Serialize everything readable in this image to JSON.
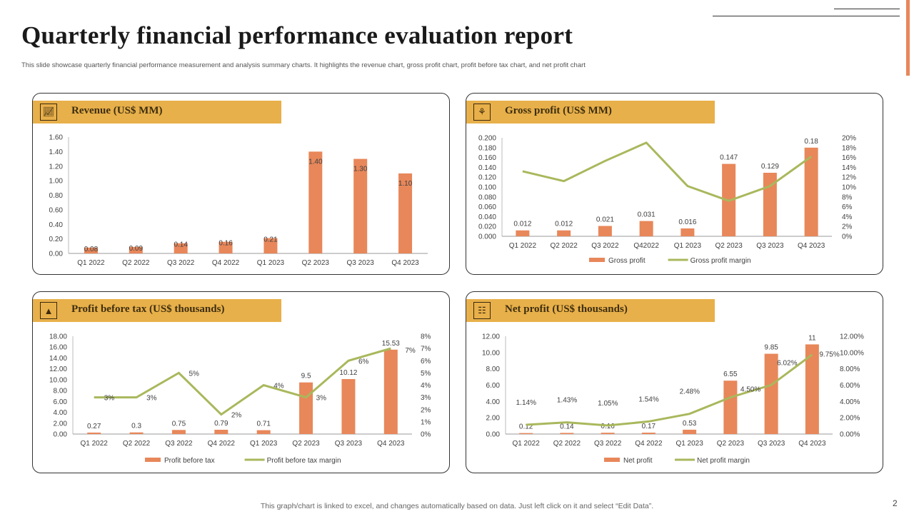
{
  "title": "Quarterly financial performance evaluation report",
  "subtitle": "This slide showcase quarterly financial performance measurement and analysis summary charts. It highlights the revenue chart, gross profit chart, profit before tax chart, and net profit chart",
  "footer": "This graph/chart is linked to excel,  and changes automatically based on data. Just left click on it and select “Edit Data”.",
  "page_number": "2",
  "colors": {
    "bar": "#e8875a",
    "line": "#a9b85c",
    "header": "#e8b04a",
    "accent": "#e8875a"
  },
  "chart_data": [
    {
      "type": "bar",
      "title": "Revenue (US$ MM)",
      "icon": "chart-growth-icon",
      "categories": [
        "Q1 2022",
        "Q2 2022",
        "Q3 2022",
        "Q4 2022",
        "Q1 2023",
        "Q2 2023",
        "Q3 2023",
        "Q4 2023"
      ],
      "values": [
        0.08,
        0.09,
        0.14,
        0.16,
        0.21,
        1.4,
        1.3,
        1.1
      ],
      "labels": [
        "0.08",
        "0.09",
        "0.14",
        "0.16",
        "0.21",
        "1.40",
        "1.30",
        "1.10"
      ],
      "ylim": [
        0,
        1.6
      ],
      "yticks": [
        "0.00",
        "0.20",
        "0.40",
        "0.60",
        "0.80",
        "1.00",
        "1.20",
        "1.40",
        "1.60"
      ],
      "grid": false
    },
    {
      "type": "bar+line",
      "title": "Gross profit  (US$ MM)",
      "icon": "money-bag-icon",
      "categories": [
        "Q1 2022",
        "Q2 2022",
        "Q3 2022",
        "Q42022",
        "Q1 2023",
        "Q2 2023",
        "Q3 2023",
        "Q4 2023"
      ],
      "series": [
        {
          "name": "Gross profit",
          "type": "bar",
          "axis": "left",
          "values": [
            0.012,
            0.012,
            0.021,
            0.031,
            0.016,
            0.147,
            0.129,
            0.18
          ],
          "labels": [
            "0.012",
            "0.012",
            "0.021",
            "0.031",
            "0.016",
            "0.147",
            "0.129",
            "0.18"
          ]
        },
        {
          "name": "Gross profit margin",
          "type": "line",
          "axis": "right",
          "values": [
            13.2,
            11.2,
            15.3,
            19.0,
            10.2,
            7.2,
            10.2,
            16.2
          ],
          "labels": []
        }
      ],
      "ylim": [
        0,
        0.2
      ],
      "yticks": [
        "0.000",
        "0.020",
        "0.040",
        "0.060",
        "0.080",
        "0.100",
        "0.120",
        "0.140",
        "0.160",
        "0.180",
        "0.200"
      ],
      "y2lim": [
        0,
        20
      ],
      "y2ticks": [
        "0%",
        "2%",
        "4%",
        "6%",
        "8%",
        "10%",
        "12%",
        "14%",
        "16%",
        "18%",
        "20%"
      ],
      "legend": "bottom",
      "grid": false
    },
    {
      "type": "bar+line",
      "title": "Profit  before tax  (US$ thousands)",
      "icon": "money-bag-hand-icon",
      "categories": [
        "Q1 2022",
        "Q2 2022",
        "Q3 2022",
        "Q4 2022",
        "Q1 2023",
        "Q2 2023",
        "Q3 2023",
        "Q4 2023"
      ],
      "series": [
        {
          "name": "Profit before tax",
          "type": "bar",
          "axis": "left",
          "values": [
            0.27,
            0.3,
            0.75,
            0.79,
            0.71,
            9.5,
            10.12,
            15.53
          ],
          "labels": [
            "0.27",
            "0.3",
            "0.75",
            "0.79",
            "0.71",
            "9.5",
            "10.12",
            "15.53"
          ]
        },
        {
          "name": "Profit before tax margin",
          "type": "line",
          "axis": "right",
          "values": [
            3,
            3,
            5,
            1.6,
            4,
            3,
            6,
            7
          ],
          "labels": [
            "3%",
            "3%",
            "5%",
            "2%",
            "4%",
            "3%",
            "6%",
            "7%"
          ]
        }
      ],
      "ylim": [
        0,
        18
      ],
      "yticks": [
        "0.00",
        "2.00",
        "4.00",
        "6.00",
        "8.00",
        "10.00",
        "12.00",
        "14.00",
        "16.00",
        "18.00"
      ],
      "y2lim": [
        0,
        8
      ],
      "y2ticks": [
        "0%",
        "1%",
        "2%",
        "3%",
        "4%",
        "5%",
        "6%",
        "7%",
        "8%"
      ],
      "legend": "bottom",
      "grid": false
    },
    {
      "type": "bar+line",
      "title": "Net profit  (US$ thousands)",
      "icon": "team-chart-icon",
      "categories": [
        "Q1 2022",
        "Q2 2022",
        "Q3 2022",
        "Q4 2022",
        "Q1 2023",
        "Q2 2023",
        "Q3 2023",
        "Q4 2023"
      ],
      "series": [
        {
          "name": "Net profit",
          "type": "bar",
          "axis": "left",
          "values": [
            0.12,
            0.14,
            0.16,
            0.17,
            0.53,
            6.55,
            9.85,
            11
          ],
          "labels": [
            "0.12",
            "0.14",
            "0.16",
            "0.17",
            "0.53",
            "6.55",
            "9.85",
            "11"
          ]
        },
        {
          "name": "Net profit margin",
          "type": "line",
          "axis": "right",
          "values": [
            1.14,
            1.43,
            1.05,
            1.54,
            2.48,
            4.5,
            6.02,
            9.75
          ],
          "labels": [
            "1.14%",
            "1.43%",
            "1.05%",
            "1.54%",
            "2.48%",
            "4.50%",
            "6.02%",
            "9.75%"
          ]
        }
      ],
      "ylim": [
        0,
        12
      ],
      "yticks": [
        "0.00",
        "2.00",
        "4.00",
        "6.00",
        "8.00",
        "10.00",
        "12.00"
      ],
      "y2lim": [
        0,
        12
      ],
      "y2ticks": [
        "0.00%",
        "2.00%",
        "4.00%",
        "6.00%",
        "8.00%",
        "10.00%",
        "12.00%"
      ],
      "legend": "bottom",
      "grid": false
    }
  ]
}
